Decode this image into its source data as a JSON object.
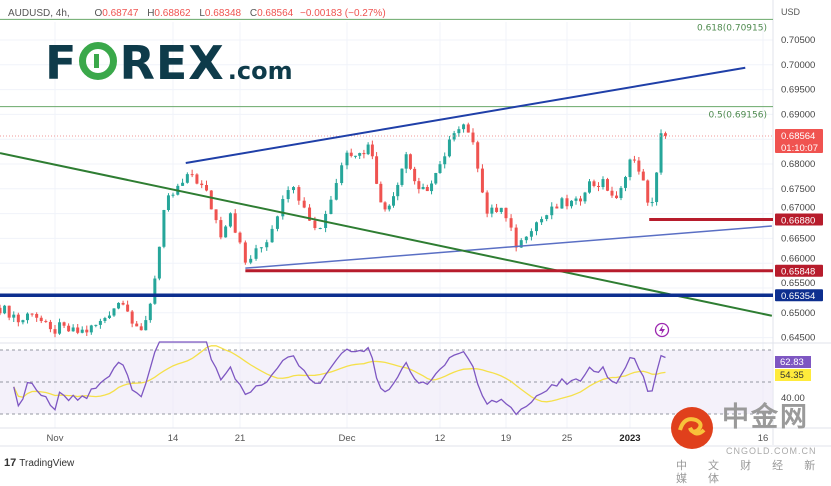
{
  "header": {
    "symbol": "AUDUSD, 4h,",
    "open_label": "O",
    "open": "0.68747",
    "high_label": "H",
    "high": "0.68862",
    "low_label": "L",
    "low": "0.68348",
    "close_label": "C",
    "close": "0.68564",
    "change": "−0.00183 (−0.27%)"
  },
  "logo": {
    "text": "FOREX.com",
    "pre": "F",
    "post": "REX",
    "suffix": ".com"
  },
  "footer": {
    "brand": "TradingView",
    "brand_icon": "tradingview-logo-icon"
  },
  "watermark": {
    "cn": "中金网",
    "en": "CNGOLD.COM.CN",
    "sub": "中 文 财 经 新 媒 体"
  },
  "colors": {
    "up": "#26a69a",
    "down": "#ef5350",
    "rsi": "#7e57c2",
    "rsi_ma": "#f5e04a",
    "fib": "#6aa86a",
    "trend": "#2e7d32",
    "channel": "#1f3fa8",
    "support_red": "#b71c2c",
    "support_blue": "#0d2f8f"
  },
  "chart_data": {
    "type": "candlestick",
    "title": "",
    "currency_label": "USD",
    "ylim": [
      0.643,
      0.709
    ],
    "y_ticks": [
      "0.70500",
      "0.70000",
      "0.69500",
      "0.69000",
      "0.68000",
      "0.67500",
      "0.67000",
      "0.66500",
      "0.66000",
      "0.65500",
      "0.65000",
      "0.64500"
    ],
    "x_ticks": [
      {
        "date": "2022-11-01",
        "label": "Nov"
      },
      {
        "date": "2022-11-14",
        "label": "14"
      },
      {
        "date": "2022-11-21",
        "label": "21"
      },
      {
        "date": "2022-12-01",
        "label": "Dec"
      },
      {
        "date": "2022-12-12",
        "label": "12"
      },
      {
        "date": "2022-12-19",
        "label": "19"
      },
      {
        "date": "2022-12-25",
        "label": "25"
      },
      {
        "date": "2023-01-01",
        "label": "2023",
        "bold": true
      },
      {
        "date": "2023-01-16",
        "label": "16"
      }
    ],
    "price_path": [
      [
        "2022-10-26T00:00",
        0.651
      ],
      [
        "2022-10-27T12:00",
        0.6495
      ],
      [
        "2022-10-28T04:00",
        0.648
      ],
      [
        "2022-10-29T12:00",
        0.6505
      ],
      [
        "2022-10-31T12:00",
        0.646
      ],
      [
        "2022-11-01T12:00",
        0.647
      ],
      [
        "2022-11-03T04:00",
        0.646
      ],
      [
        "2022-11-04T16:00",
        0.6465
      ],
      [
        "2022-11-06T00:00",
        0.648
      ],
      [
        "2022-11-07T08:00",
        0.651
      ],
      [
        "2022-11-08T16:00",
        0.653
      ],
      [
        "2022-11-09T12:00",
        0.648
      ],
      [
        "2022-11-10T08:00",
        0.645
      ],
      [
        "2022-11-11T12:00",
        0.652
      ],
      [
        "2022-11-12T16:00",
        0.665
      ],
      [
        "2022-11-13T04:00",
        0.672
      ],
      [
        "2022-11-14T12:00",
        0.675
      ],
      [
        "2022-11-16T00:00",
        0.678
      ],
      [
        "2022-11-17T12:00",
        0.674
      ],
      [
        "2022-11-19T00:00",
        0.666
      ],
      [
        "2022-11-20T00:00",
        0.6705
      ],
      [
        "2022-11-21T12:00",
        0.66
      ],
      [
        "2022-11-23T08:00",
        0.664
      ],
      [
        "2022-11-24T08:00",
        0.669
      ],
      [
        "2022-11-25T08:00",
        0.676
      ],
      [
        "2022-11-26T20:00",
        0.673
      ],
      [
        "2022-11-28T04:00",
        0.666
      ],
      [
        "2022-11-29T04:00",
        0.671
      ],
      [
        "2022-12-01T00:00",
        0.683
      ],
      [
        "2022-12-02T12:00",
        0.682
      ],
      [
        "2022-12-03T20:00",
        0.684
      ],
      [
        "2022-12-05T04:00",
        0.67
      ],
      [
        "2022-12-06T12:00",
        0.674
      ],
      [
        "2022-12-08T00:00",
        0.682
      ],
      [
        "2022-12-09T12:00",
        0.674
      ],
      [
        "2022-12-11T00:00",
        0.676
      ],
      [
        "2022-12-12T12:00",
        0.681
      ],
      [
        "2022-12-13T16:00",
        0.688
      ],
      [
        "2022-12-14T20:00",
        0.688
      ],
      [
        "2022-12-16T00:00",
        0.68
      ],
      [
        "2022-12-17T00:00",
        0.67
      ],
      [
        "2022-12-18T12:00",
        0.671
      ],
      [
        "2022-12-20T04:00",
        0.663
      ],
      [
        "2022-12-21T04:00",
        0.667
      ],
      [
        "2022-12-23T04:00",
        0.67
      ],
      [
        "2022-12-24T12:00",
        0.672
      ],
      [
        "2022-12-26T04:00",
        0.672
      ],
      [
        "2022-12-27T04:00",
        0.676
      ],
      [
        "2022-12-29T04:00",
        0.676
      ],
      [
        "2022-12-30T16:00",
        0.672
      ],
      [
        "2022-12-31T20:00",
        0.681
      ],
      [
        "2023-01-02T04:00",
        0.679
      ],
      [
        "2023-01-03T04:00",
        0.67
      ],
      [
        "2023-01-03T20:00",
        0.676
      ],
      [
        "2023-01-04T16:00",
        0.688
      ],
      [
        "2023-01-05T00:00",
        0.68564
      ]
    ],
    "last_price": {
      "value": 0.68564,
      "label": "0.68564",
      "countdown": "01:10:07"
    },
    "fib_levels": [
      {
        "value": 0.70915,
        "label": "0.618(0.70915)"
      },
      {
        "value": 0.69156,
        "label": "0.5(0.69156)"
      }
    ],
    "horizontal_levels": [
      {
        "value": 0.6688,
        "label": "0.66880",
        "from": "2023-01-03T04:00",
        "color": "#b71c2c"
      },
      {
        "value": 0.65848,
        "label": "0.65848",
        "from": "2022-11-21T12:00",
        "color": "#b71c2c"
      },
      {
        "value": 0.65354,
        "label": "0.65354",
        "from": null,
        "color": "#0d2f8f"
      }
    ],
    "trend_lines": [
      {
        "name": "channel-upper",
        "p1": [
          "2022-11-15T08:00",
          0.6802
        ],
        "p2": [
          "2023-01-14T00:00",
          0.6994
        ],
        "color": "#1f3fa8"
      },
      {
        "name": "channel-lower",
        "p1": [
          "2022-11-21T12:00",
          0.659
        ],
        "p2": [
          "2023-01-17T00:00",
          0.6675
        ],
        "color": "#5a6fc4"
      },
      {
        "name": "downtrend",
        "p1": [
          "2022-10-26T00:00",
          0.6822
        ],
        "p2": [
          "2023-01-17T00:00",
          0.6494
        ],
        "color": "#2e7d32"
      }
    ],
    "rsi": {
      "period": 14,
      "levels": [
        70,
        50,
        30
      ],
      "axis_label": "40.00",
      "value_label": "62.83",
      "ma_label": "54.35"
    }
  }
}
